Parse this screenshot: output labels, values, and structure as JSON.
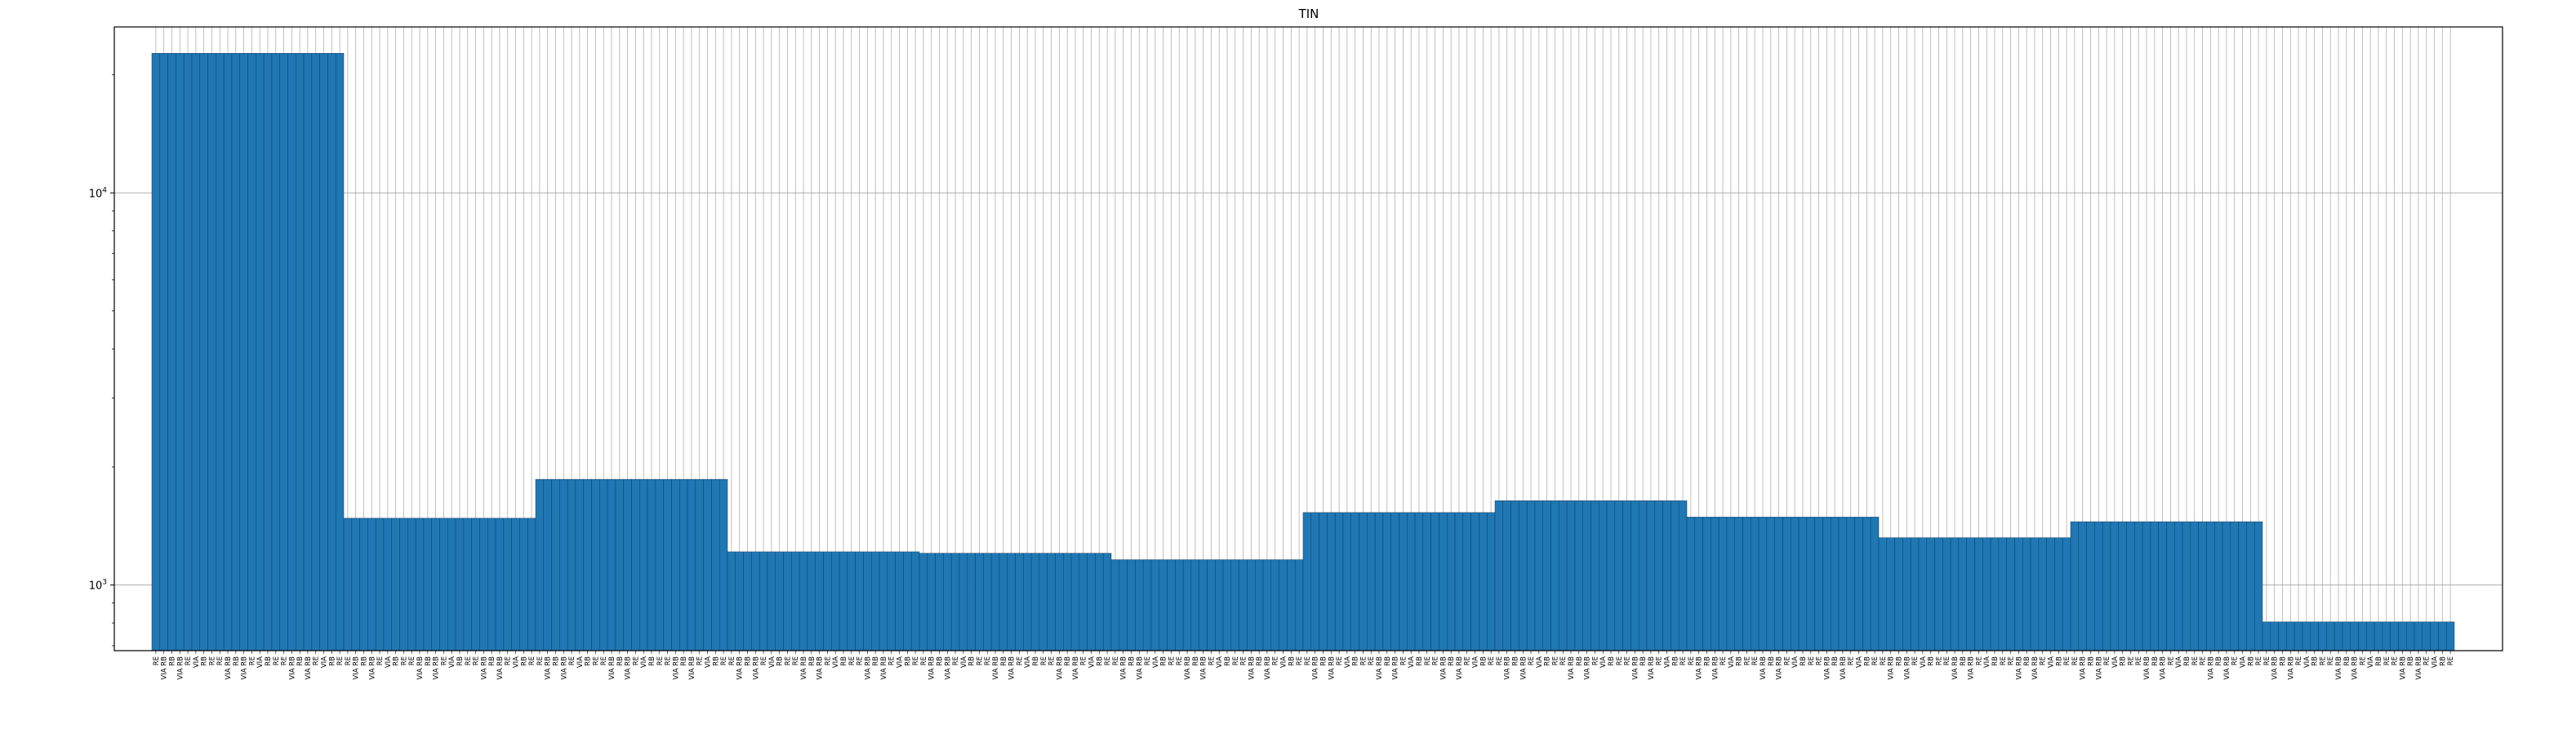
{
  "chart_data": {
    "type": "bar",
    "title": "TIN",
    "xlabel": "",
    "ylabel": "",
    "yscale": "log",
    "ylim": [
      680,
      26500
    ],
    "yticks": [
      {
        "value": 1000,
        "label": "10^3"
      },
      {
        "value": 10000,
        "label": "10^4"
      }
    ],
    "grid": true,
    "color": "#1f77b4",
    "category_label_pattern": [
      "RE",
      "VIA RB",
      "RB",
      "VIA RB",
      "RE",
      "VIA",
      "RB",
      "RE"
    ],
    "groups": [
      {
        "count": 24,
        "value": 22700
      },
      {
        "count": 24,
        "value": 1480
      },
      {
        "count": 24,
        "value": 1860
      },
      {
        "count": 24,
        "value": 1215
      },
      {
        "count": 24,
        "value": 1205
      },
      {
        "count": 24,
        "value": 1160
      },
      {
        "count": 24,
        "value": 1530
      },
      {
        "count": 24,
        "value": 1640
      },
      {
        "count": 24,
        "value": 1490
      },
      {
        "count": 24,
        "value": 1320
      },
      {
        "count": 24,
        "value": 1450
      },
      {
        "count": 24,
        "value": 805
      }
    ]
  }
}
